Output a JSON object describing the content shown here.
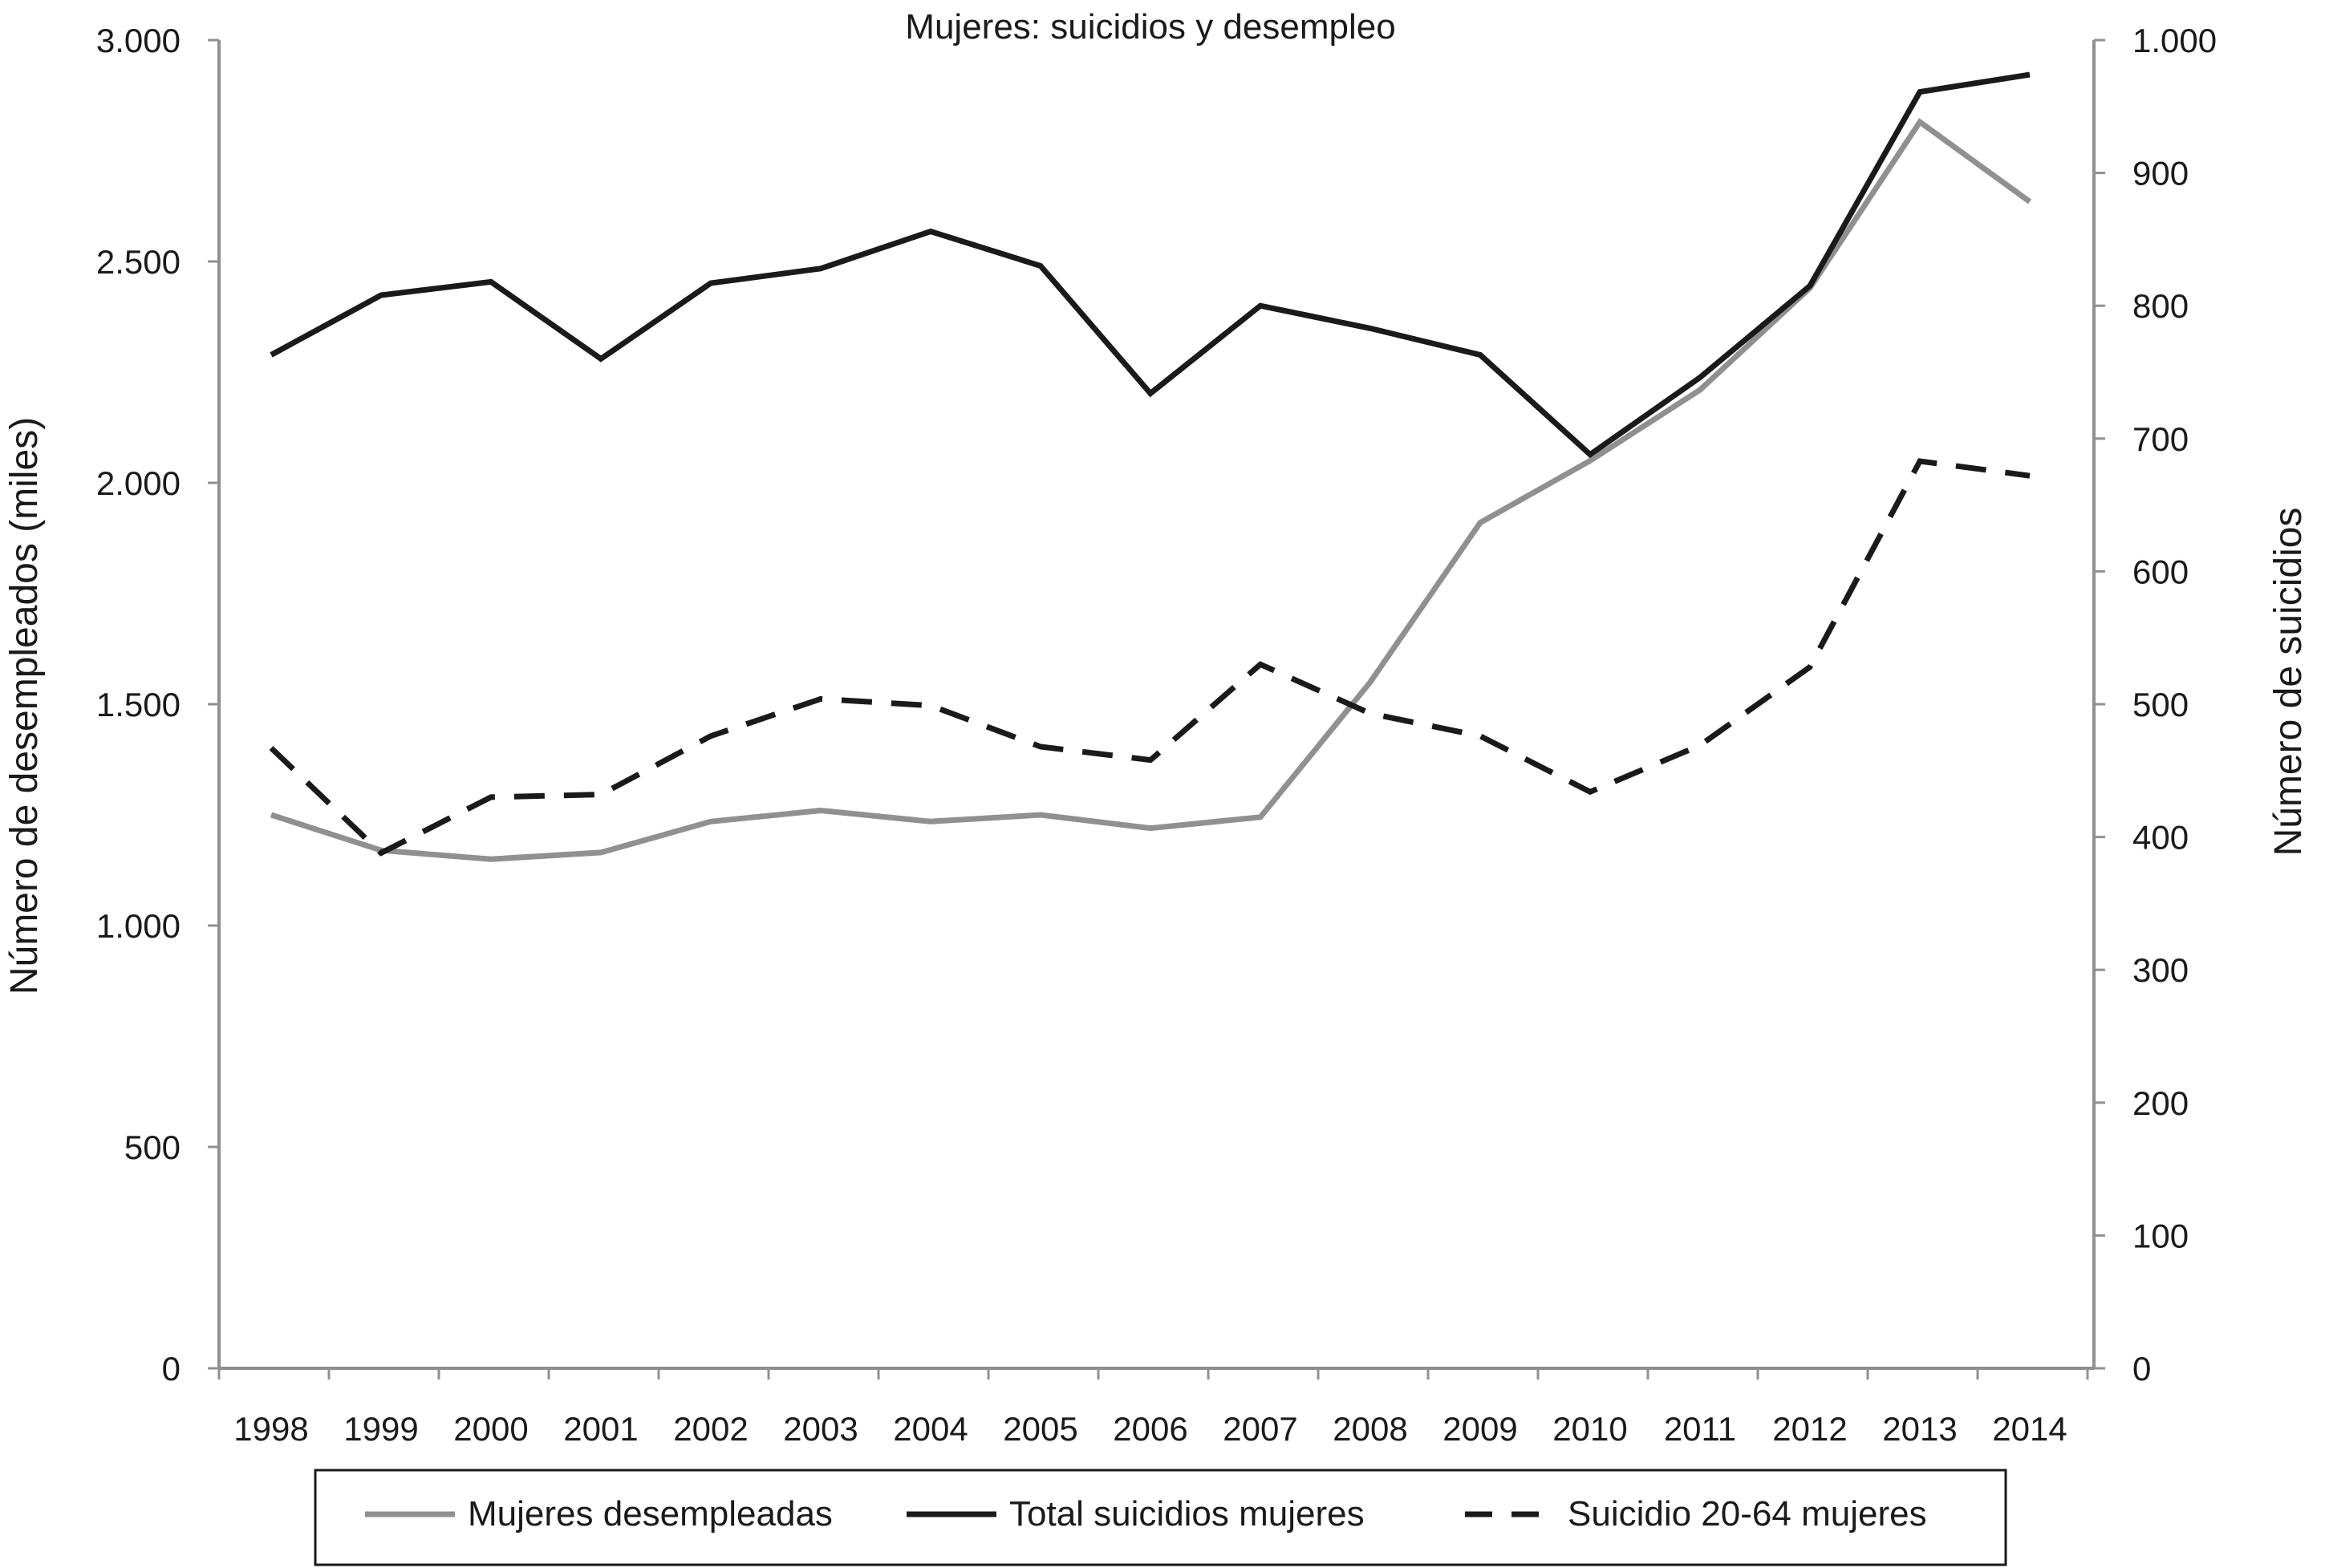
{
  "chart_data": {
    "type": "line",
    "title": "Mujeres: suicidios y desempleo",
    "categories": [
      "1998",
      "1999",
      "2000",
      "2001",
      "2002",
      "2003",
      "2004",
      "2005",
      "2006",
      "2007",
      "2008",
      "2009",
      "2010",
      "2011",
      "2012",
      "2013",
      "2014"
    ],
    "y_left": {
      "label": "Número de desempleados (miles)",
      "range": [
        0,
        3000
      ],
      "ticks": [
        0,
        500,
        1000,
        1500,
        2000,
        2500,
        3000
      ],
      "tick_labels": [
        "0",
        "500",
        "1.000",
        "1.500",
        "2.000",
        "2.500",
        "3.000"
      ]
    },
    "y_right": {
      "label": "Número de suicidios",
      "range": [
        0,
        1000
      ],
      "ticks": [
        0,
        100,
        200,
        300,
        400,
        500,
        600,
        700,
        800,
        900,
        1000
      ],
      "tick_labels": [
        "0",
        "100",
        "200",
        "300",
        "400",
        "500",
        "600",
        "700",
        "800",
        "900",
        "1.000"
      ]
    },
    "series": [
      {
        "name": "Mujeres desempleadas",
        "axis": "left",
        "color": "#909090",
        "dash": "solid",
        "values": [
          1250,
          1170,
          1150,
          1165,
          1235,
          1260,
          1235,
          1250,
          1220,
          1245,
          1550,
          1910,
          2050,
          2210,
          2440,
          2815,
          2635
        ]
      },
      {
        "name": "Total suicidios mujeres",
        "axis": "right",
        "color": "#1a1a1a",
        "dash": "solid",
        "values": [
          763,
          808,
          818,
          760,
          817,
          828,
          856,
          830,
          734,
          800,
          783,
          763,
          688,
          746,
          815,
          961,
          974
        ]
      },
      {
        "name": "Suicidio 20-64 mujeres",
        "axis": "right",
        "color": "#1a1a1a",
        "dash": "dashed",
        "values": [
          467,
          388,
          430,
          432,
          476,
          504,
          499,
          468,
          458,
          530,
          493,
          476,
          434,
          469,
          528,
          683,
          672
        ]
      }
    ],
    "legend": {
      "placement": "bottom"
    },
    "grid": false
  }
}
